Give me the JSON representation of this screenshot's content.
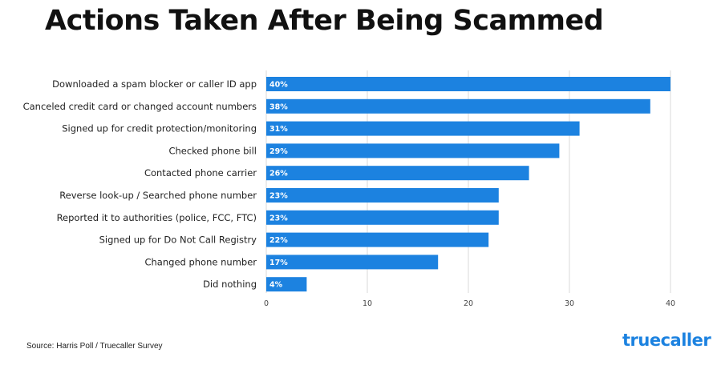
{
  "chart_data": {
    "type": "bar",
    "orientation": "horizontal",
    "title": "Actions Taken After Being Scammed",
    "categories": [
      "Downloaded a spam blocker or caller ID app",
      "Canceled credit card or changed account numbers",
      "Signed up for credit protection/monitoring",
      "Checked phone bill",
      "Contacted phone carrier",
      "Reverse look-up / Searched phone number",
      "Reported it to authorities (police, FCC, FTC)",
      "Signed up for Do Not Call Registry",
      "Changed phone number",
      "Did nothing"
    ],
    "values": [
      40,
      38,
      31,
      29,
      26,
      23,
      23,
      22,
      17,
      4
    ],
    "value_labels": [
      "40%",
      "38%",
      "31%",
      "29%",
      "26%",
      "23%",
      "23%",
      "22%",
      "17%",
      "4%"
    ],
    "xlim": [
      0,
      40
    ],
    "xticks": [
      0,
      10,
      20,
      30,
      40
    ],
    "xtick_labels": [
      "0",
      "10",
      "20",
      "30",
      "40"
    ],
    "grid": true,
    "bar_color": "#1c82e0",
    "grid_color": "#d9d9d9"
  },
  "footer": {
    "source": "Source: Harris Poll / Truecaller Survey",
    "logo_text": "truecaller",
    "logo_color": "#1c82e0"
  }
}
